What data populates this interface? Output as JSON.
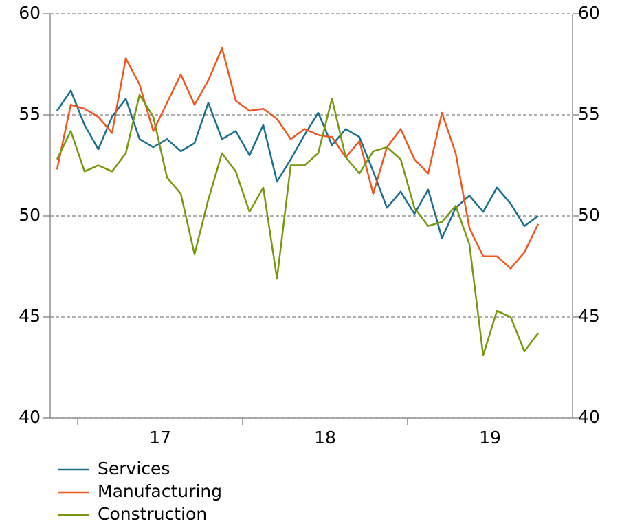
{
  "chart_data": {
    "type": "line",
    "categories": [
      null,
      null,
      null,
      null,
      null,
      null,
      null,
      "17",
      null,
      null,
      null,
      null,
      null,
      null,
      null,
      null,
      null,
      null,
      null,
      "18",
      null,
      null,
      null,
      null,
      null,
      null,
      null,
      null,
      null,
      null,
      null,
      "19",
      null,
      null,
      null,
      null
    ],
    "series": [
      {
        "name": "Services",
        "color": "#1a6e8e",
        "values": [
          55.2,
          56.2,
          54.5,
          53.3,
          54.9,
          55.8,
          53.8,
          53.4,
          53.8,
          53.2,
          53.6,
          55.6,
          53.8,
          54.2,
          53.0,
          54.5,
          51.7,
          52.8,
          54.0,
          55.1,
          53.5,
          54.3,
          53.9,
          52.2,
          50.4,
          51.2,
          50.1,
          51.3,
          48.9,
          50.4,
          51.0,
          50.2,
          51.4,
          50.6,
          49.5,
          50.0
        ]
      },
      {
        "name": "Manufacturing",
        "color": "#f0561d",
        "values": [
          52.3,
          55.5,
          55.3,
          54.9,
          54.1,
          57.8,
          56.5,
          54.2,
          55.6,
          57.0,
          55.5,
          56.7,
          58.3,
          55.7,
          55.2,
          55.3,
          54.8,
          53.8,
          54.3,
          54.0,
          53.9,
          52.9,
          53.7,
          51.1,
          53.4,
          54.3,
          52.8,
          52.1,
          55.1,
          53.1,
          49.4,
          48.0,
          48.0,
          47.4,
          48.2,
          49.6
        ]
      },
      {
        "name": "Construction",
        "color": "#76980e",
        "values": [
          52.8,
          54.2,
          52.2,
          52.5,
          52.2,
          53.1,
          56.0,
          54.9,
          51.9,
          51.1,
          48.1,
          50.8,
          53.1,
          52.2,
          50.2,
          51.4,
          46.9,
          52.5,
          52.5,
          53.1,
          55.8,
          52.9,
          52.1,
          53.2,
          53.4,
          52.8,
          50.4,
          49.5,
          49.7,
          50.5,
          48.6,
          43.1,
          45.3,
          45.0,
          43.3,
          44.2
        ]
      }
    ],
    "ylim": [
      40,
      60
    ],
    "yticks": [
      40,
      45,
      50,
      55,
      60
    ],
    "y2lim": [
      40,
      60
    ],
    "y2ticks": [
      40,
      45,
      50,
      55,
      60
    ],
    "grid": true
  }
}
